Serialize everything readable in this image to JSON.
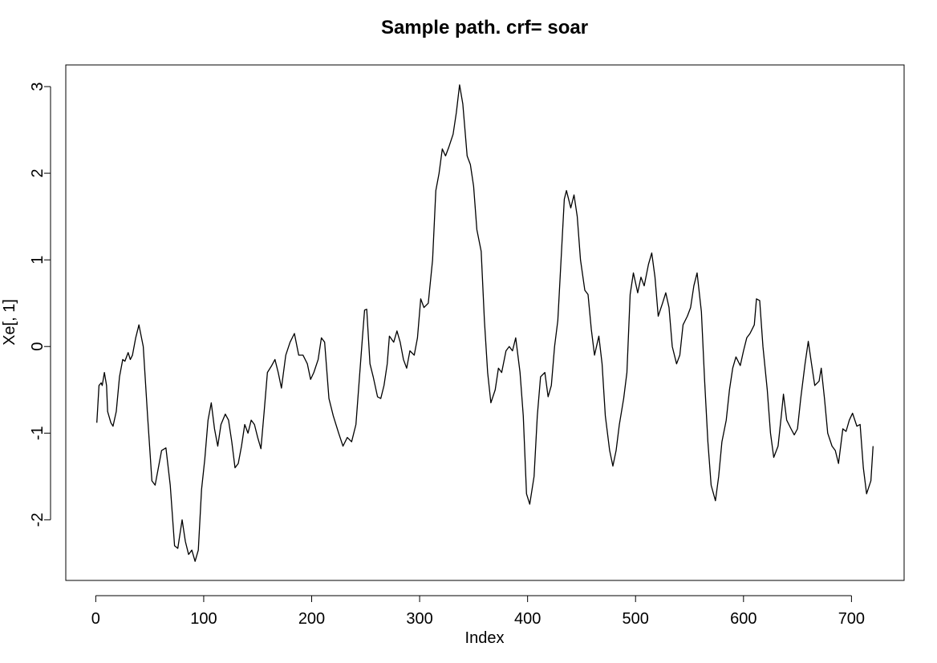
{
  "chart_data": {
    "type": "line",
    "title": "Sample path. crf= soar",
    "x_label": "Index",
    "y_label": "Xe[, 1]",
    "color": "#000000",
    "x": [
      1,
      3,
      5,
      6,
      8,
      10,
      11,
      14,
      16,
      19,
      22,
      25,
      27,
      30,
      32,
      34,
      37,
      40,
      44,
      48,
      52,
      55,
      58,
      61,
      65,
      69,
      73,
      76,
      80,
      83,
      86,
      89,
      92,
      95,
      98,
      101,
      104,
      107,
      110,
      113,
      116,
      120,
      123,
      126,
      129,
      132,
      135,
      138,
      141,
      144,
      147,
      150,
      153,
      156,
      159,
      163,
      166,
      169,
      172,
      176,
      180,
      184,
      188,
      192,
      196,
      199,
      202,
      206,
      209,
      212,
      216,
      220,
      225,
      229,
      233,
      237,
      241,
      244,
      247,
      249,
      251,
      254,
      257,
      261,
      264,
      267,
      270,
      272,
      276,
      279,
      282,
      285,
      288,
      291,
      295,
      298,
      301,
      304,
      308,
      312,
      315,
      318,
      321,
      324,
      327,
      331,
      334,
      337,
      340,
      344,
      347,
      350,
      353,
      357,
      360,
      363,
      366,
      370,
      373,
      376,
      380,
      383,
      386,
      389,
      393,
      396,
      399,
      402,
      406,
      409,
      412,
      416,
      419,
      422,
      425,
      428,
      431,
      434,
      436,
      440,
      443,
      446,
      449,
      453,
      456,
      459,
      462,
      466,
      469,
      472,
      476,
      479,
      482,
      485,
      489,
      492,
      495,
      498,
      502,
      505,
      508,
      512,
      515,
      518,
      521,
      525,
      528,
      531,
      534,
      538,
      541,
      544,
      548,
      551,
      554,
      557,
      561,
      564,
      567,
      570,
      574,
      577,
      580,
      584,
      587,
      590,
      593,
      597,
      600,
      603,
      606,
      610,
      612,
      615,
      618,
      622,
      625,
      628,
      632,
      635,
      637,
      640,
      644,
      647,
      650,
      653,
      657,
      660,
      663,
      666,
      670,
      672,
      675,
      678,
      682,
      685,
      688,
      692,
      695,
      698,
      701,
      705,
      708,
      711,
      714,
      718,
      720
    ],
    "values": [
      -0.88,
      -0.45,
      -0.42,
      -0.45,
      -0.3,
      -0.45,
      -0.75,
      -0.88,
      -0.92,
      -0.75,
      -0.35,
      -0.15,
      -0.17,
      -0.07,
      -0.15,
      -0.1,
      0.1,
      0.25,
      0.0,
      -0.8,
      -1.55,
      -1.6,
      -1.4,
      -1.2,
      -1.17,
      -1.6,
      -2.3,
      -2.33,
      -2.0,
      -2.25,
      -2.4,
      -2.35,
      -2.48,
      -2.35,
      -1.65,
      -1.3,
      -0.85,
      -0.65,
      -0.95,
      -1.15,
      -0.9,
      -0.78,
      -0.85,
      -1.1,
      -1.4,
      -1.35,
      -1.15,
      -0.9,
      -1.0,
      -0.85,
      -0.9,
      -1.05,
      -1.18,
      -0.75,
      -0.3,
      -0.22,
      -0.15,
      -0.3,
      -0.48,
      -0.1,
      0.05,
      0.15,
      -0.1,
      -0.1,
      -0.2,
      -0.38,
      -0.3,
      -0.15,
      0.1,
      0.05,
      -0.6,
      -0.8,
      -1.0,
      -1.15,
      -1.05,
      -1.1,
      -0.9,
      -0.4,
      0.1,
      0.42,
      0.43,
      -0.2,
      -0.35,
      -0.58,
      -0.6,
      -0.45,
      -0.2,
      0.12,
      0.05,
      0.18,
      0.05,
      -0.15,
      -0.25,
      -0.05,
      -0.1,
      0.1,
      0.55,
      0.45,
      0.5,
      1.0,
      1.8,
      2.0,
      2.28,
      2.2,
      2.3,
      2.45,
      2.7,
      3.02,
      2.8,
      2.2,
      2.1,
      1.85,
      1.35,
      1.1,
      0.3,
      -0.3,
      -0.65,
      -0.5,
      -0.25,
      -0.3,
      -0.05,
      0.0,
      -0.05,
      0.1,
      -0.3,
      -0.8,
      -1.7,
      -1.82,
      -1.5,
      -0.8,
      -0.35,
      -0.3,
      -0.58,
      -0.45,
      0.0,
      0.3,
      1.0,
      1.7,
      1.8,
      1.6,
      1.75,
      1.5,
      1.0,
      0.65,
      0.6,
      0.2,
      -0.1,
      0.12,
      -0.2,
      -0.8,
      -1.2,
      -1.38,
      -1.2,
      -0.9,
      -0.6,
      -0.3,
      0.6,
      0.85,
      0.62,
      0.8,
      0.7,
      0.95,
      1.08,
      0.8,
      0.35,
      0.5,
      0.62,
      0.45,
      0.0,
      -0.2,
      -0.1,
      0.25,
      0.35,
      0.45,
      0.7,
      0.85,
      0.4,
      -0.4,
      -1.1,
      -1.6,
      -1.78,
      -1.5,
      -1.1,
      -0.85,
      -0.5,
      -0.25,
      -0.12,
      -0.22,
      -0.05,
      0.1,
      0.15,
      0.25,
      0.55,
      0.53,
      0.0,
      -0.5,
      -1.0,
      -1.28,
      -1.15,
      -0.8,
      -0.55,
      -0.85,
      -0.95,
      -1.02,
      -0.95,
      -0.6,
      -0.2,
      0.06,
      -0.2,
      -0.45,
      -0.4,
      -0.25,
      -0.6,
      -1.0,
      -1.15,
      -1.2,
      -1.35,
      -0.95,
      -0.98,
      -0.85,
      -0.77,
      -0.92,
      -0.9,
      -1.4,
      -1.7,
      -1.55,
      -1.15
    ],
    "xlim": [
      -27.76,
      748.76
    ],
    "ylim": [
      -2.7,
      3.25
    ],
    "xticks": [
      0,
      100,
      200,
      300,
      400,
      500,
      600,
      700
    ],
    "yticks": [
      -2,
      -1,
      0,
      1,
      2,
      3
    ]
  }
}
